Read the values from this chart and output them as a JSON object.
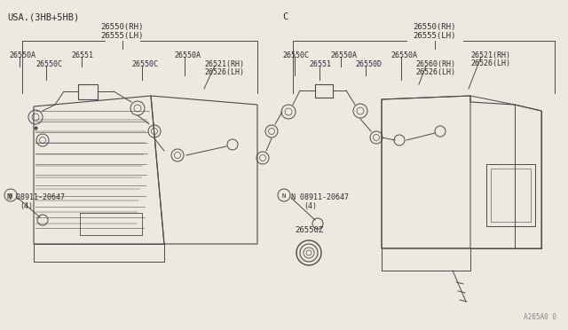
{
  "bg_color": "#ede8e0",
  "line_color": "#4a4a4a",
  "text_color": "#2a2a2a",
  "figsize": [
    6.4,
    3.72
  ],
  "dpi": 100,
  "left_label": "USA.(3HB+5HB)",
  "right_label": "C",
  "bottom_code": "A265A0 0",
  "center_part": "26550Z",
  "left_top1": "26550(RH)",
  "left_top2": "26555(LH)",
  "right_top1": "26550(RH)",
  "right_top2": "26555(LH)",
  "left_parts_row1": [
    "26550A",
    "26551",
    "",
    "26550A"
  ],
  "left_parts_row2": [
    "26550C",
    "",
    "26550C",
    "26521(RH)",
    "26526(LH)"
  ],
  "right_parts_row1": [
    "26550C",
    "26550A",
    "",
    "26550A",
    "26521(RH)",
    "26526(LH)"
  ],
  "right_parts_row2": [
    "26551",
    "26550D",
    "26560(RH)",
    "26526(LH)"
  ],
  "nut_left": "N 08911-20647",
  "nut_left_sub": "(4)",
  "nut_right": "N 08911-20647",
  "nut_right_sub": "(4)"
}
